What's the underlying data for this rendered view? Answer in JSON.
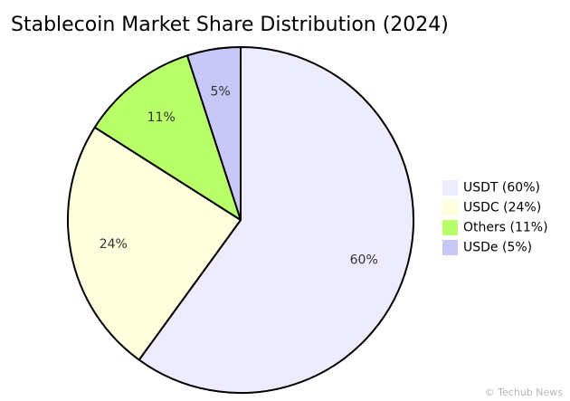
{
  "chart_data": {
    "type": "pie",
    "title": "Stablecoin Market Share Distribution (2024)",
    "slices": [
      {
        "label": "USDT",
        "value": 60,
        "display": "60%",
        "legend": "USDT (60%)",
        "color": "#ececfe"
      },
      {
        "label": "USDC",
        "value": 24,
        "display": "24%",
        "legend": "USDC (24%)",
        "color": "#ffffde"
      },
      {
        "label": "Others",
        "value": 11,
        "display": "11%",
        "legend": "Others (11%)",
        "color": "#b9ff6a"
      },
      {
        "label": "USDe",
        "value": 5,
        "display": "5%",
        "legend": "USDe (5%)",
        "color": "#c8c8f8"
      }
    ],
    "start_angle": "12 o'clock",
    "direction": "clockwise",
    "legend_position": "right"
  },
  "watermark": "© Techub News"
}
